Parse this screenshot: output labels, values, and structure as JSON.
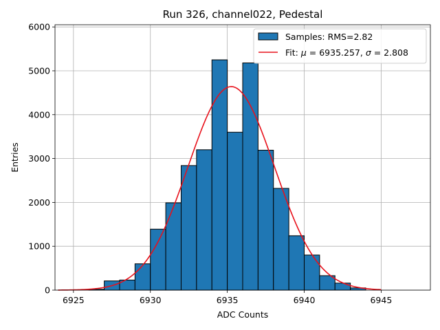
{
  "chart_data": {
    "type": "bar",
    "title": "Run 326, channel022, Pedestal",
    "xlabel": "ADC Counts",
    "ylabel": "Entries",
    "xlim": [
      6923.8,
      6948.2
    ],
    "ylim": [
      0,
      6050
    ],
    "x_ticks": [
      6925,
      6930,
      6935,
      6940,
      6945
    ],
    "y_ticks": [
      0,
      1000,
      2000,
      3000,
      4000,
      5000,
      6000
    ],
    "grid": true,
    "legend_position": "top-right",
    "histogram": {
      "name": "Samples: RMS=2.82",
      "color": "#1f77b4",
      "bin_width": 1,
      "bin_starts": [
        6926,
        6927,
        6928,
        6929,
        6930,
        6931,
        6932,
        6933,
        6934,
        6935,
        6936,
        6937,
        6938,
        6939,
        6940,
        6941,
        6942,
        6943
      ],
      "values": [
        20,
        210,
        230,
        600,
        1390,
        1990,
        2840,
        3200,
        5250,
        3600,
        5180,
        3190,
        2320,
        1240,
        800,
        330,
        160,
        50
      ]
    },
    "fit": {
      "name_prefix": "Fit: ",
      "mu_label": "μ",
      "mu_text": " = 6935.257, ",
      "sigma_label": "σ",
      "sigma_text": " = 2.808",
      "color": "#e8101a",
      "mu": 6935.257,
      "sigma": 2.808,
      "amplitude": 4640,
      "x_range": [
        6924,
        6945
      ]
    }
  }
}
